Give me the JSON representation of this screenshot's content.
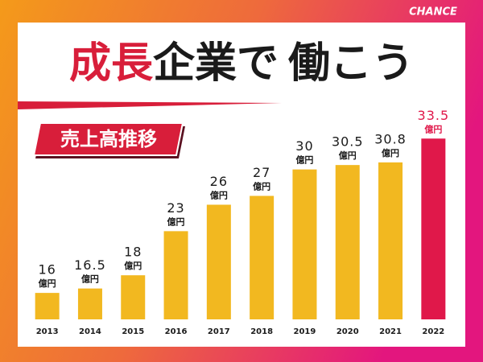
{
  "chart_data": {
    "type": "bar",
    "brand": "CHANCE",
    "title_parts": [
      {
        "text": "成長",
        "color": "#d81e3a"
      },
      {
        "text": "企業で",
        "color": "#1a1a1a"
      },
      {
        "text": "働こう",
        "color": "#1a1a1a"
      }
    ],
    "subtitle": "売上高推移",
    "unit": "億円",
    "categories": [
      "2013",
      "2014",
      "2015",
      "2016",
      "2017",
      "2018",
      "2019",
      "2020",
      "2021",
      "2022"
    ],
    "values": [
      16,
      16.5,
      18,
      23,
      26,
      27,
      30,
      30.5,
      30.8,
      33.5
    ],
    "bar_colors": [
      "#f2b820",
      "#f2b820",
      "#f2b820",
      "#f2b820",
      "#f2b820",
      "#f2b820",
      "#f2b820",
      "#f2b820",
      "#f2b820",
      "#e0184a"
    ],
    "label_colors": [
      "#1a1a1a",
      "#1a1a1a",
      "#1a1a1a",
      "#1a1a1a",
      "#1a1a1a",
      "#1a1a1a",
      "#1a1a1a",
      "#1a1a1a",
      "#1a1a1a",
      "#e0184a"
    ],
    "ylim": [
      13,
      40
    ]
  }
}
